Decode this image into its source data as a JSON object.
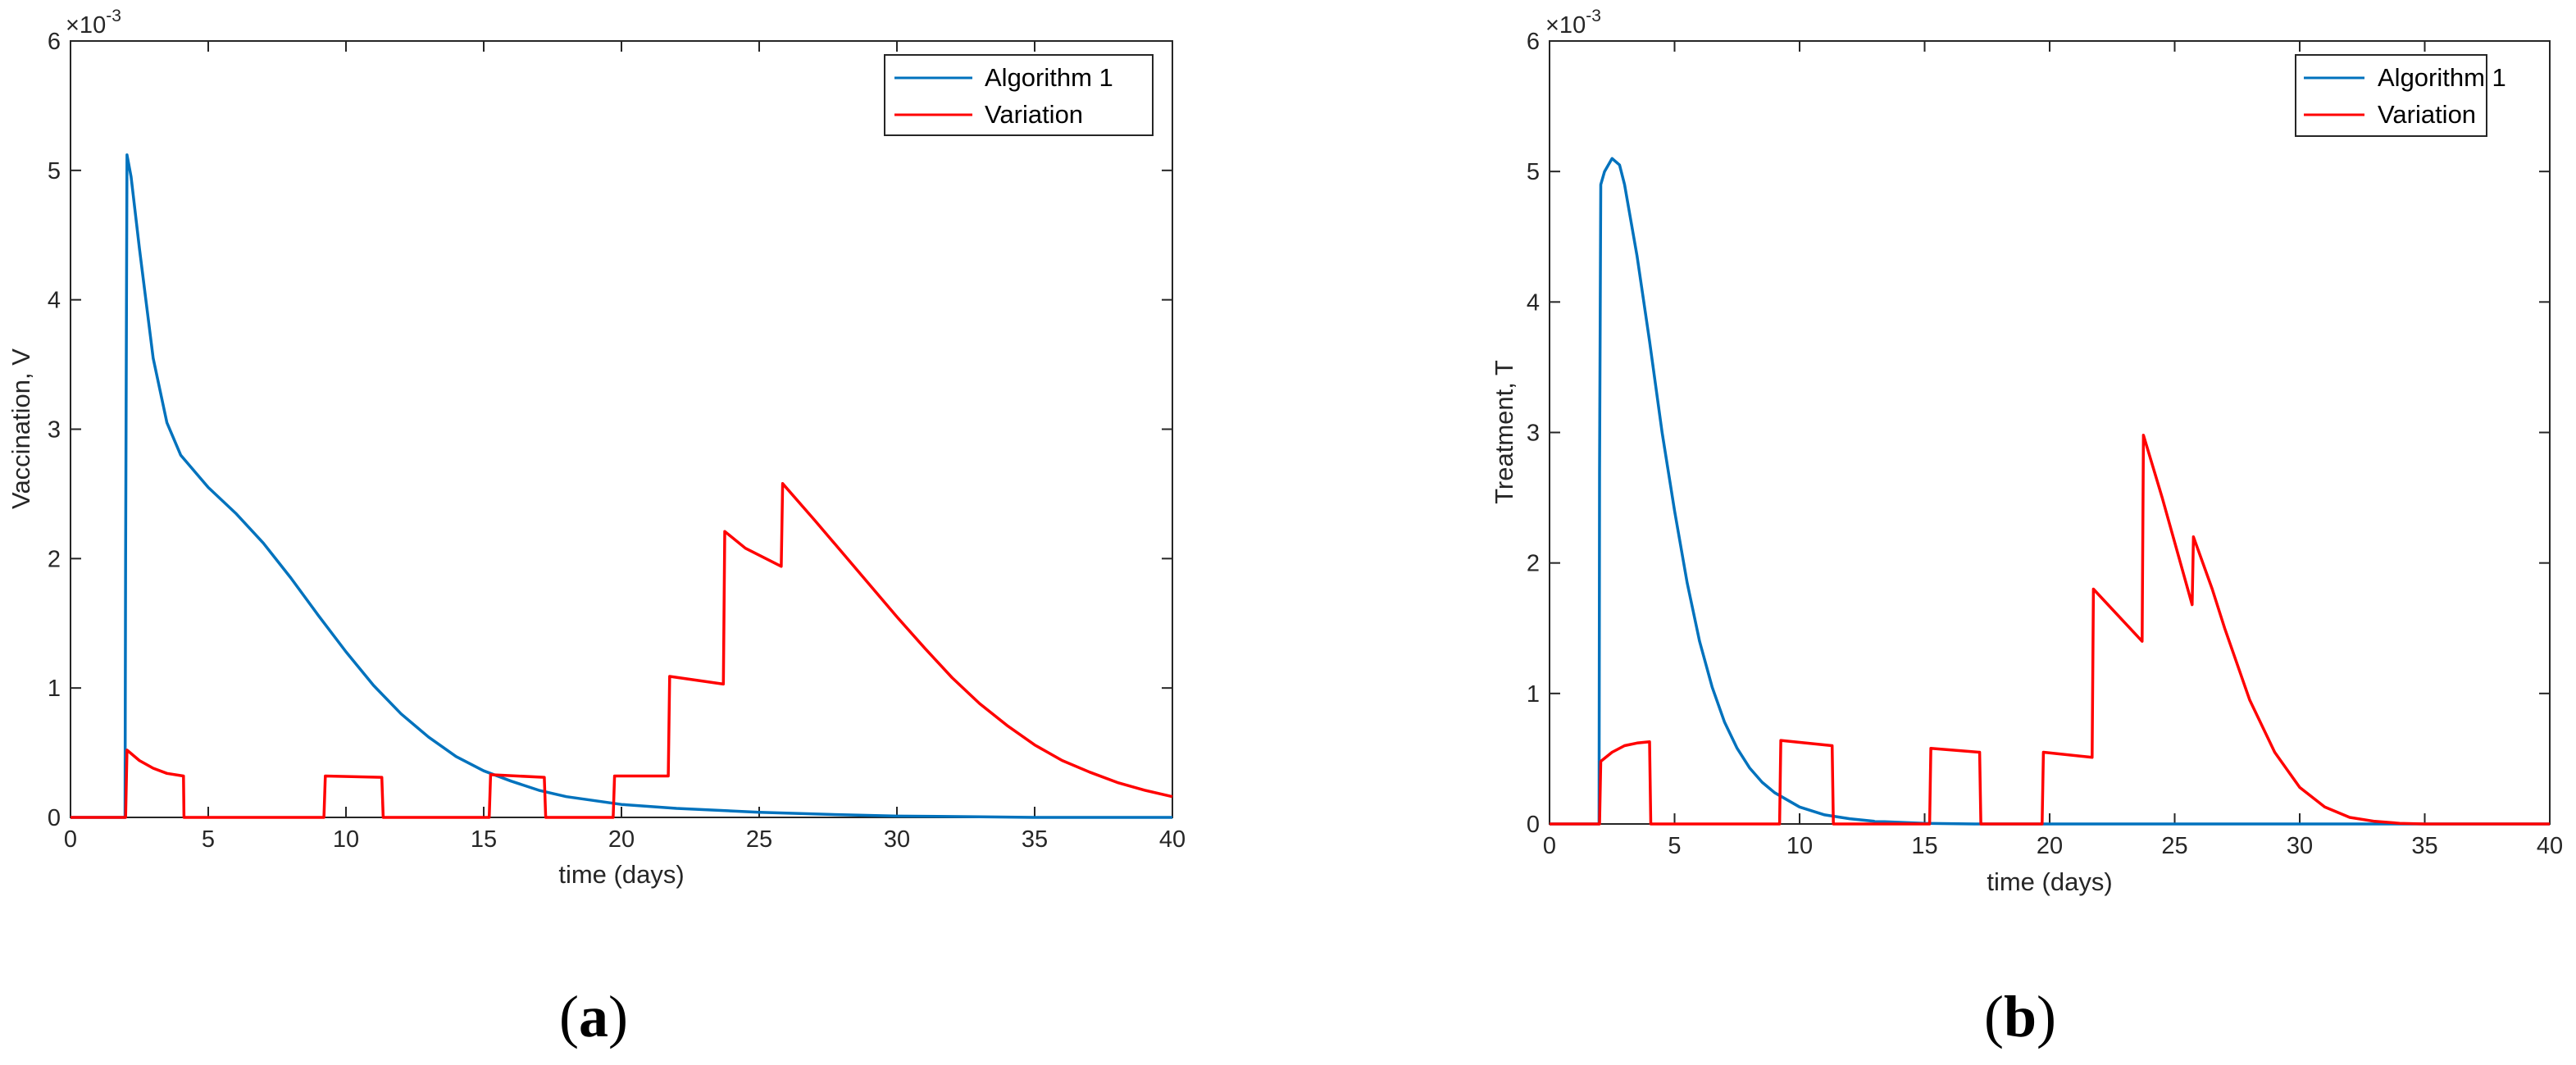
{
  "chart_data": [
    {
      "type": "line",
      "panel_label": "a",
      "caption_open": "(",
      "caption_close": ")",
      "xlabel": "time (days)",
      "ylabel": "Vaccination, V",
      "y_multiplier": "×10",
      "y_exponent": "-3",
      "xlim": [
        0,
        40
      ],
      "ylim": [
        0,
        6
      ],
      "xticks": [
        0,
        5,
        10,
        15,
        20,
        25,
        30,
        35,
        40
      ],
      "yticks": [
        0,
        1,
        2,
        3,
        4,
        5,
        6
      ],
      "legend_position": "top-right",
      "series": [
        {
          "name": "Algorithm 1",
          "color": "#0072BD",
          "points": [
            [
              0,
              0
            ],
            [
              1.98,
              0
            ],
            [
              2.0,
              2.0
            ],
            [
              2.05,
              5.12
            ],
            [
              2.2,
              4.95
            ],
            [
              2.5,
              4.4
            ],
            [
              3.0,
              3.55
            ],
            [
              3.5,
              3.05
            ],
            [
              4.0,
              2.8
            ],
            [
              5.0,
              2.55
            ],
            [
              6.0,
              2.35
            ],
            [
              7.0,
              2.12
            ],
            [
              8.0,
              1.85
            ],
            [
              9.0,
              1.56
            ],
            [
              10.0,
              1.28
            ],
            [
              11.0,
              1.02
            ],
            [
              12.0,
              0.8
            ],
            [
              13.0,
              0.62
            ],
            [
              14.0,
              0.47
            ],
            [
              15.0,
              0.36
            ],
            [
              16.0,
              0.28
            ],
            [
              17.0,
              0.21
            ],
            [
              18.0,
              0.16
            ],
            [
              20.0,
              0.1
            ],
            [
              22.0,
              0.07
            ],
            [
              25.0,
              0.04
            ],
            [
              28.0,
              0.02
            ],
            [
              30.0,
              0.01
            ],
            [
              33.0,
              0.005
            ],
            [
              35.0,
              0.0
            ],
            [
              40.0,
              0.0
            ]
          ]
        },
        {
          "name": "Variation",
          "color": "#FF0000",
          "points": [
            [
              0,
              0
            ],
            [
              2.0,
              0
            ],
            [
              2.05,
              0.52
            ],
            [
              2.5,
              0.44
            ],
            [
              3.0,
              0.38
            ],
            [
              3.5,
              0.34
            ],
            [
              4.1,
              0.32
            ],
            [
              4.12,
              0
            ],
            [
              9.2,
              0
            ],
            [
              9.25,
              0.32
            ],
            [
              11.3,
              0.31
            ],
            [
              11.35,
              0
            ],
            [
              15.2,
              0
            ],
            [
              15.25,
              0.33
            ],
            [
              17.2,
              0.31
            ],
            [
              17.25,
              0
            ],
            [
              19.7,
              0
            ],
            [
              19.75,
              0.32
            ],
            [
              21.7,
              0.32
            ],
            [
              21.75,
              1.09
            ],
            [
              23.7,
              1.03
            ],
            [
              23.75,
              2.21
            ],
            [
              24.5,
              2.08
            ],
            [
              25.8,
              1.94
            ],
            [
              25.85,
              2.58
            ],
            [
              27.0,
              2.3
            ],
            [
              28.0,
              2.05
            ],
            [
              29.0,
              1.8
            ],
            [
              30.0,
              1.55
            ],
            [
              31.0,
              1.31
            ],
            [
              32.0,
              1.08
            ],
            [
              33.0,
              0.88
            ],
            [
              34.0,
              0.71
            ],
            [
              35.0,
              0.56
            ],
            [
              36.0,
              0.44
            ],
            [
              37.0,
              0.35
            ],
            [
              38.0,
              0.27
            ],
            [
              39.0,
              0.21
            ],
            [
              40.0,
              0.16
            ]
          ]
        }
      ]
    },
    {
      "type": "line",
      "panel_label": "b",
      "caption_open": "(",
      "caption_close": ")",
      "xlabel": "time (days)",
      "ylabel": "Treatment, T",
      "y_multiplier": "×10",
      "y_exponent": "-3",
      "xlim": [
        0,
        40
      ],
      "ylim": [
        0,
        6
      ],
      "xticks": [
        0,
        5,
        10,
        15,
        20,
        25,
        30,
        35,
        40
      ],
      "yticks": [
        0,
        1,
        2,
        3,
        4,
        5,
        6
      ],
      "legend_position": "top-right",
      "series": [
        {
          "name": "Algorithm 1",
          "color": "#0072BD",
          "points": [
            [
              0,
              0
            ],
            [
              1.98,
              0
            ],
            [
              2.0,
              2.7
            ],
            [
              2.05,
              4.9
            ],
            [
              2.2,
              5.0
            ],
            [
              2.5,
              5.1
            ],
            [
              2.8,
              5.05
            ],
            [
              3.0,
              4.9
            ],
            [
              3.5,
              4.35
            ],
            [
              4.0,
              3.7
            ],
            [
              4.5,
              3.0
            ],
            [
              5.0,
              2.4
            ],
            [
              5.5,
              1.85
            ],
            [
              6.0,
              1.4
            ],
            [
              6.5,
              1.05
            ],
            [
              7.0,
              0.78
            ],
            [
              7.5,
              0.58
            ],
            [
              8.0,
              0.43
            ],
            [
              8.5,
              0.32
            ],
            [
              9.0,
              0.24
            ],
            [
              10.0,
              0.13
            ],
            [
              11.0,
              0.07
            ],
            [
              12.0,
              0.04
            ],
            [
              13.0,
              0.02
            ],
            [
              15.0,
              0.005
            ],
            [
              17.0,
              0.0
            ],
            [
              40.0,
              0.0
            ]
          ]
        },
        {
          "name": "Variation",
          "color": "#FF0000",
          "points": [
            [
              0,
              0
            ],
            [
              2.0,
              0
            ],
            [
              2.05,
              0.48
            ],
            [
              2.5,
              0.55
            ],
            [
              3.0,
              0.6
            ],
            [
              3.5,
              0.62
            ],
            [
              4.0,
              0.63
            ],
            [
              4.05,
              0
            ],
            [
              9.2,
              0
            ],
            [
              9.25,
              0.64
            ],
            [
              11.3,
              0.6
            ],
            [
              11.35,
              0
            ],
            [
              15.2,
              0
            ],
            [
              15.25,
              0.58
            ],
            [
              17.2,
              0.55
            ],
            [
              17.25,
              0
            ],
            [
              19.7,
              0
            ],
            [
              19.75,
              0.55
            ],
            [
              21.7,
              0.51
            ],
            [
              21.75,
              1.8
            ],
            [
              23.7,
              1.4
            ],
            [
              23.75,
              2.98
            ],
            [
              24.5,
              2.5
            ],
            [
              25.7,
              1.68
            ],
            [
              25.75,
              2.2
            ],
            [
              26.5,
              1.8
            ],
            [
              27.0,
              1.5
            ],
            [
              28.0,
              0.95
            ],
            [
              29.0,
              0.55
            ],
            [
              30.0,
              0.28
            ],
            [
              31.0,
              0.13
            ],
            [
              32.0,
              0.05
            ],
            [
              33.0,
              0.02
            ],
            [
              34.0,
              0.005
            ],
            [
              35.0,
              0.0
            ],
            [
              40.0,
              0.0
            ]
          ]
        }
      ]
    }
  ]
}
